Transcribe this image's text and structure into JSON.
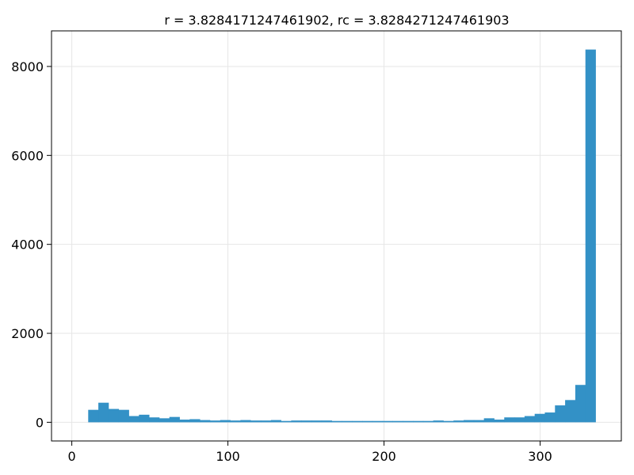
{
  "chart_data": {
    "type": "bar",
    "title": "r = 3.8284171247461902, rc = 3.8284271247461903",
    "xlabel": "",
    "ylabel": "",
    "xlim": [
      -13,
      352
    ],
    "ylim": [
      -420,
      8800
    ],
    "x_ticks": [
      0,
      100,
      200,
      300
    ],
    "y_ticks": [
      0,
      2000,
      4000,
      6000,
      8000
    ],
    "x_tick_labels": [
      "0",
      "100",
      "200",
      "300"
    ],
    "y_tick_labels": [
      "0",
      "2000",
      "4000",
      "6000",
      "8000"
    ],
    "grid": true,
    "bar_color": "#3391c6",
    "bin_width": 6.5,
    "bin_start": 10.5,
    "values": [
      280,
      440,
      300,
      280,
      140,
      170,
      110,
      90,
      120,
      60,
      70,
      50,
      40,
      50,
      40,
      50,
      40,
      40,
      50,
      30,
      40,
      40,
      40,
      40,
      30,
      30,
      30,
      30,
      30,
      30,
      30,
      30,
      30,
      30,
      40,
      30,
      40,
      50,
      50,
      90,
      60,
      110,
      110,
      140,
      190,
      220,
      380,
      500,
      840,
      8380
    ]
  }
}
